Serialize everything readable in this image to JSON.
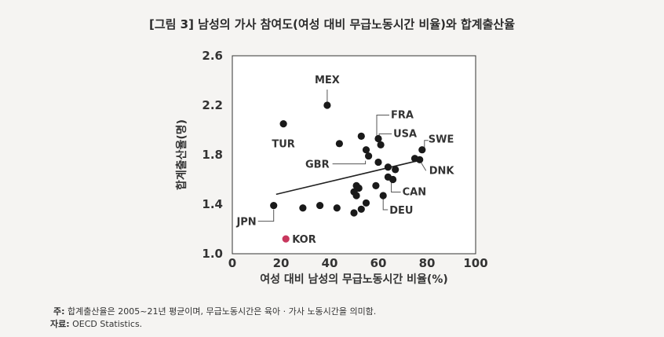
{
  "title": "[그림 3] 남성의 가사 참여도(여성 대비 무급노동시간 비율)와 합계출산율",
  "chart_data": {
    "type": "scatter",
    "xlabel": "여성 대비 남성의 무급노동시간 비율(%)",
    "ylabel": "합계출산율(명)",
    "xlim": [
      0,
      100
    ],
    "ylim": [
      1.0,
      2.6
    ],
    "xticks": [
      "0",
      "20",
      "40",
      "60",
      "80",
      "100"
    ],
    "yticks": [
      "1.0",
      "1.4",
      "1.8",
      "2.2",
      "2.6"
    ],
    "grid": false,
    "highlight_color": "#c8375d",
    "point_color": "#1a1a1a",
    "trendline": {
      "x": [
        18,
        78
      ],
      "y": [
        1.48,
        1.76
      ]
    },
    "points": [
      {
        "x": 39,
        "y": 2.2,
        "label": "MEX",
        "highlight": false
      },
      {
        "x": 21,
        "y": 2.05,
        "label": "TUR",
        "highlight": false
      },
      {
        "x": 44,
        "y": 1.89,
        "label": "",
        "highlight": false
      },
      {
        "x": 53,
        "y": 1.95,
        "label": "",
        "highlight": false
      },
      {
        "x": 60,
        "y": 1.93,
        "label": "FRA",
        "highlight": false
      },
      {
        "x": 61,
        "y": 1.88,
        "label": "USA",
        "highlight": false
      },
      {
        "x": 55,
        "y": 1.84,
        "label": "",
        "highlight": false
      },
      {
        "x": 56,
        "y": 1.79,
        "label": "GBR",
        "highlight": false
      },
      {
        "x": 78,
        "y": 1.84,
        "label": "SWE",
        "highlight": false
      },
      {
        "x": 75,
        "y": 1.77,
        "label": "",
        "highlight": false
      },
      {
        "x": 77,
        "y": 1.76,
        "label": "DNK",
        "highlight": false
      },
      {
        "x": 60,
        "y": 1.74,
        "label": "",
        "highlight": false
      },
      {
        "x": 64,
        "y": 1.7,
        "label": "",
        "highlight": false
      },
      {
        "x": 67,
        "y": 1.68,
        "label": "",
        "highlight": false
      },
      {
        "x": 64,
        "y": 1.62,
        "label": "",
        "highlight": false
      },
      {
        "x": 66,
        "y": 1.6,
        "label": "CAN",
        "highlight": false
      },
      {
        "x": 59,
        "y": 1.55,
        "label": "",
        "highlight": false
      },
      {
        "x": 51,
        "y": 1.55,
        "label": "",
        "highlight": false
      },
      {
        "x": 52,
        "y": 1.53,
        "label": "",
        "highlight": false
      },
      {
        "x": 50,
        "y": 1.5,
        "label": "",
        "highlight": false
      },
      {
        "x": 51,
        "y": 1.47,
        "label": "",
        "highlight": false
      },
      {
        "x": 62,
        "y": 1.47,
        "label": "DEU",
        "highlight": false
      },
      {
        "x": 55,
        "y": 1.41,
        "label": "",
        "highlight": false
      },
      {
        "x": 53,
        "y": 1.36,
        "label": "",
        "highlight": false
      },
      {
        "x": 50,
        "y": 1.33,
        "label": "",
        "highlight": false
      },
      {
        "x": 17,
        "y": 1.39,
        "label": "JPN",
        "highlight": false
      },
      {
        "x": 29,
        "y": 1.37,
        "label": "",
        "highlight": false
      },
      {
        "x": 36,
        "y": 1.39,
        "label": "",
        "highlight": false
      },
      {
        "x": 43,
        "y": 1.37,
        "label": "",
        "highlight": false
      },
      {
        "x": 22,
        "y": 1.12,
        "label": "KOR",
        "highlight": true
      }
    ]
  },
  "notes": {
    "note_prefix": "주:",
    "note_text": "합계출산율은 2005~21년 평균이며, 무급노동시간은 육아 · 가사 노동시간을 의미함.",
    "source_prefix": "자료:",
    "source_text": "OECD Statistics."
  }
}
